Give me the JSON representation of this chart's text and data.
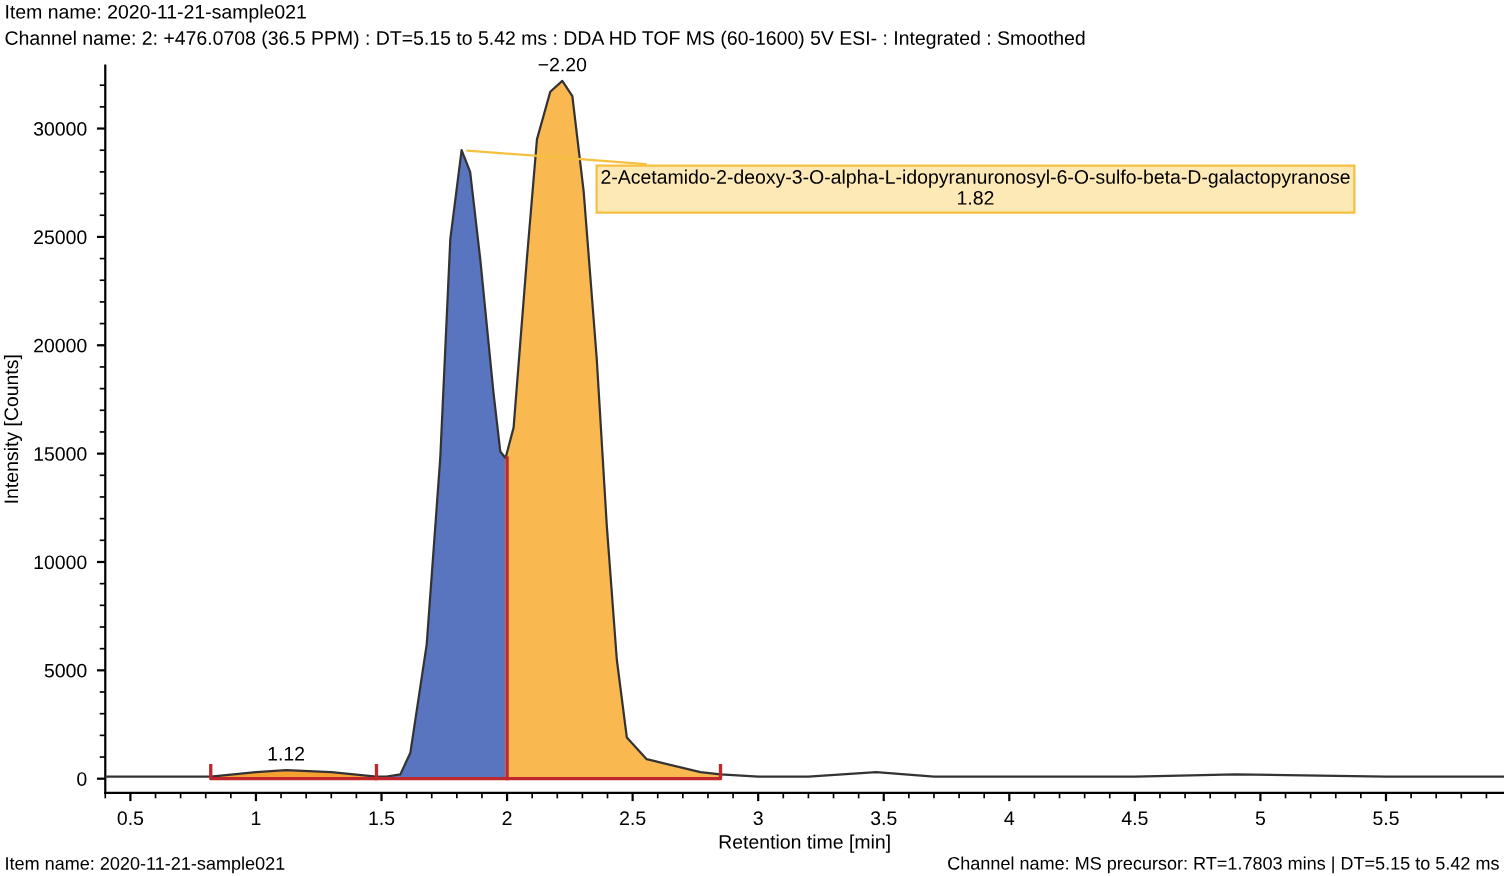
{
  "chart_data": {
    "type": "line",
    "title": "Item name: 2020-11-21-sample021",
    "subtitle": "Channel name: 2: +476.0708 (36.5 PPM) : DT=5.15 to 5.42 ms : DDA HD TOF MS (60-1600) 5V ESI- : Integrated : Smoothed",
    "xlabel": "Retention time [min]",
    "ylabel": "Intensity [Counts]",
    "xlim": [
      0.4,
      5.97
    ],
    "ylim": [
      -650,
      32900
    ],
    "xticks": [
      0.5,
      1,
      1.5,
      2,
      2.5,
      3,
      3.5,
      4,
      4.5,
      5,
      5.5
    ],
    "yticks": [
      0,
      5000,
      10000,
      15000,
      20000,
      25000,
      30000
    ],
    "grid": false,
    "series": [
      {
        "type": "area",
        "color": "#f5a030",
        "x": [
          0.82,
          1.0,
          1.12,
          1.3,
          1.48
        ],
        "values": [
          100,
          300,
          400,
          300,
          100
        ]
      },
      {
        "type": "area",
        "color": "#5a75c0",
        "x": [
          1.52,
          1.575,
          1.615,
          1.68,
          1.734,
          1.774,
          1.819,
          1.853,
          1.893,
          1.946,
          1.973,
          1.994
        ],
        "values": [
          100,
          200,
          1200,
          6200,
          14800,
          24900,
          29000,
          28000,
          24000,
          17800,
          15100,
          14800
        ]
      },
      {
        "type": "area",
        "color": "#f9b850",
        "x": [
          1.994,
          2.026,
          2.079,
          2.119,
          2.172,
          2.22,
          2.26,
          2.305,
          2.357,
          2.397,
          2.437,
          2.477,
          2.556,
          2.77,
          2.85
        ],
        "values": [
          14800,
          16200,
          24000,
          29500,
          31700,
          32200,
          31500,
          27100,
          19400,
          11700,
          5500,
          1900,
          900,
          300,
          200
        ]
      },
      {
        "color": "#333333",
        "x": [
          0.4,
          0.82,
          1.0,
          1.12,
          1.3,
          1.48,
          1.52,
          1.575,
          1.615,
          1.68,
          1.734,
          1.774,
          1.819,
          1.853,
          1.893,
          1.946,
          1.973,
          1.994,
          2.026,
          2.079,
          2.119,
          2.172,
          2.22,
          2.26,
          2.305,
          2.357,
          2.397,
          2.437,
          2.477,
          2.556,
          2.77,
          2.85,
          3.0,
          3.2,
          3.47,
          3.7,
          4.0,
          4.5,
          4.9,
          5.5,
          5.97
        ],
        "values": [
          100,
          100,
          300,
          400,
          300,
          100,
          100,
          200,
          1200,
          6200,
          14800,
          24900,
          29000,
          28000,
          24000,
          17800,
          15100,
          14800,
          16200,
          24000,
          29500,
          31700,
          32200,
          31500,
          27100,
          19400,
          11700,
          5500,
          1900,
          900,
          300,
          200,
          100,
          100,
          300,
          100,
          100,
          100,
          200,
          100,
          100
        ]
      },
      {
        "color": "#c0272d",
        "x": [
          0.82,
          0.82,
          1.48,
          1.48
        ],
        "values": [
          600,
          0,
          0,
          600
        ]
      },
      {
        "color": "#c0272d",
        "x": [
          1.48,
          2.85,
          2.85
        ],
        "values": [
          0,
          0,
          600
        ]
      },
      {
        "color": "#c0272d",
        "x": [
          2.0,
          2.0
        ],
        "values": [
          0,
          14800
        ]
      }
    ],
    "annotations": [
      {
        "text": "1.12",
        "x": 1.12,
        "y": 400
      },
      {
        "text": "2-Acetamido-2-deoxy-3-O-alpha-L-idopyranuronosyl-6-O-sulfo-beta-D-galactopyranose\n1.82",
        "x": 1.819,
        "y": 29000
      },
      {
        "text": "−2.20",
        "x": 2.22,
        "y": 32200
      },
      "Item name: 2020-11-21-sample021",
      "Channel name: MS precursor: RT=1.7803 mins | DT=5.15 to 5.42 ms"
    ]
  }
}
